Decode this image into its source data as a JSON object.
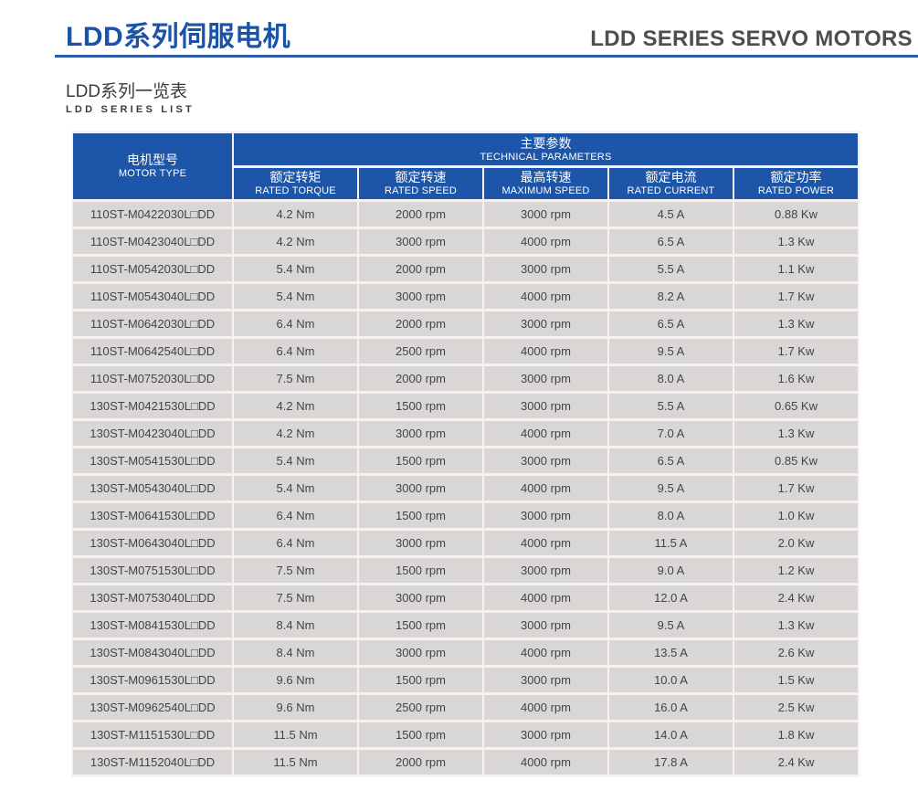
{
  "page": {
    "title_cn": "LDD系列伺服电机",
    "title_en": "LDD SERIES SERVO MOTORS",
    "subtitle_cn": "LDD系列一览表",
    "subtitle_en": "LDD SERIES LIST"
  },
  "colors": {
    "header_blue": "#1d55a8",
    "title_blue": "#1a53a8",
    "rule_blue": "#2e5bac",
    "row_gray": "#d8d7d5",
    "data_text": "#444444",
    "header_text": "#ffffff"
  },
  "table": {
    "motor_type_header": {
      "cn": "电机型号",
      "en": "MOTOR TYPE"
    },
    "params_header": {
      "cn": "主要参数",
      "en": "TECHNICAL PARAMETERS"
    },
    "columns": [
      {
        "cn": "额定转矩",
        "en": "RATED TORQUE"
      },
      {
        "cn": "额定转速",
        "en": "RATED SPEED"
      },
      {
        "cn": "最高转速",
        "en": "MAXIMUM SPEED"
      },
      {
        "cn": "额定电流",
        "en": "RATED CURRENT"
      },
      {
        "cn": "额定功率",
        "en": "RATED POWER"
      }
    ],
    "rows": [
      [
        "110ST-M0422030L□DD",
        "4.2 Nm",
        "2000 rpm",
        "3000 rpm",
        "4.5 A",
        "0.88 Kw"
      ],
      [
        "110ST-M0423040L□DD",
        "4.2 Nm",
        "3000 rpm",
        "4000 rpm",
        "6.5 A",
        "1.3 Kw"
      ],
      [
        "110ST-M0542030L□DD",
        "5.4 Nm",
        "2000 rpm",
        "3000 rpm",
        "5.5 A",
        "1.1 Kw"
      ],
      [
        "110ST-M0543040L□DD",
        "5.4 Nm",
        "3000 rpm",
        "4000 rpm",
        "8.2 A",
        "1.7 Kw"
      ],
      [
        "110ST-M0642030L□DD",
        "6.4 Nm",
        "2000 rpm",
        "3000 rpm",
        "6.5 A",
        "1.3 Kw"
      ],
      [
        "110ST-M0642540L□DD",
        "6.4 Nm",
        "2500 rpm",
        "4000 rpm",
        "9.5 A",
        "1.7 Kw"
      ],
      [
        "110ST-M0752030L□DD",
        "7.5 Nm",
        "2000 rpm",
        "3000 rpm",
        "8.0 A",
        "1.6 Kw"
      ],
      [
        "130ST-M0421530L□DD",
        "4.2 Nm",
        "1500 rpm",
        "3000 rpm",
        "5.5 A",
        "0.65 Kw"
      ],
      [
        "130ST-M0423040L□DD",
        "4.2 Nm",
        "3000 rpm",
        "4000 rpm",
        "7.0 A",
        "1.3 Kw"
      ],
      [
        "130ST-M0541530L□DD",
        "5.4 Nm",
        "1500 rpm",
        "3000 rpm",
        "6.5 A",
        "0.85 Kw"
      ],
      [
        "130ST-M0543040L□DD",
        "5.4 Nm",
        "3000 rpm",
        "4000 rpm",
        "9.5 A",
        "1.7 Kw"
      ],
      [
        "130ST-M0641530L□DD",
        "6.4 Nm",
        "1500 rpm",
        "3000 rpm",
        "8.0 A",
        "1.0 Kw"
      ],
      [
        "130ST-M0643040L□DD",
        "6.4 Nm",
        "3000 rpm",
        "4000 rpm",
        "11.5 A",
        "2.0 Kw"
      ],
      [
        "130ST-M0751530L□DD",
        "7.5 Nm",
        "1500 rpm",
        "3000 rpm",
        "9.0 A",
        "1.2 Kw"
      ],
      [
        "130ST-M0753040L□DD",
        "7.5 Nm",
        "3000 rpm",
        "4000 rpm",
        "12.0 A",
        "2.4 Kw"
      ],
      [
        "130ST-M0841530L□DD",
        "8.4 Nm",
        "1500 rpm",
        "3000 rpm",
        "9.5 A",
        "1.3 Kw"
      ],
      [
        "130ST-M0843040L□DD",
        "8.4 Nm",
        "3000 rpm",
        "4000 rpm",
        "13.5 A",
        "2.6 Kw"
      ],
      [
        "130ST-M0961530L□DD",
        "9.6 Nm",
        "1500 rpm",
        "3000 rpm",
        "10.0 A",
        "1.5 Kw"
      ],
      [
        "130ST-M0962540L□DD",
        "9.6 Nm",
        "2500 rpm",
        "4000 rpm",
        "16.0 A",
        "2.5 Kw"
      ],
      [
        "130ST-M1151530L□DD",
        "11.5 Nm",
        "1500 rpm",
        "3000 rpm",
        "14.0 A",
        "1.8 Kw"
      ],
      [
        "130ST-M1152040L□DD",
        "11.5 Nm",
        "2000 rpm",
        "4000 rpm",
        "17.8 A",
        "2.4 Kw"
      ]
    ]
  }
}
